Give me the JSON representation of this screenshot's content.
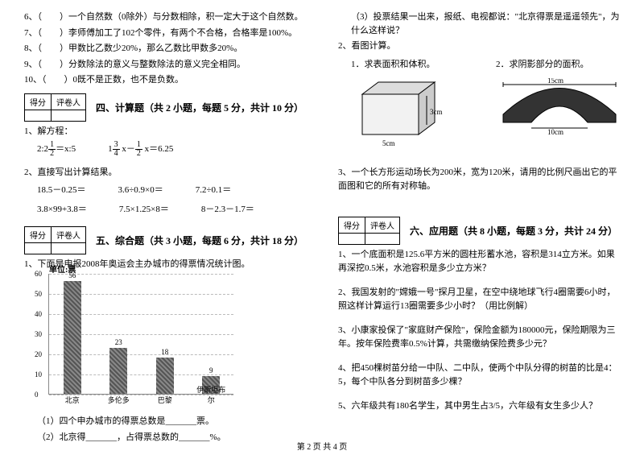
{
  "left": {
    "judgeItems": [
      "6、（　　）一个自然数（0除外）与分数相除，积一定大于这个自然数。",
      "7、（　　）李师傅加工了102个零件，有两个不合格，合格率是100%。",
      "8、（　　）甲数比乙数少20%，那么乙数比甲数多20%。",
      "9、（　　）分数除法的意义与整数除法的意义完全相同。",
      "10、（　　）0既不是正数，也不是负数。"
    ],
    "sec4": {
      "title": "四、计算题（共 2 小题，每题 5 分，共计 10 分）",
      "q1": "1、解方程：",
      "eq1a_pre": "2:2",
      "eq1a_frac_n": "1",
      "eq1a_frac_d": "2",
      "eq1a_post": "＝x:5",
      "eq1b_pre": "1",
      "eq1b_f1n": "3",
      "eq1b_f1d": "4",
      "eq1b_mid": " x－",
      "eq1b_f2n": "1",
      "eq1b_f2d": "2",
      "eq1b_post": " x＝6.25",
      "q2": "2、直接写出计算结果。",
      "row1": [
        "18.5－0.25＝",
        "3.6÷0.9×0＝",
        "7.2÷0.1＝"
      ],
      "row2": [
        "3.8×99+3.8＝",
        "7.5×1.25×8＝",
        "8－2.3－1.7＝"
      ]
    },
    "sec5": {
      "title": "五、综合题（共 3 小题，每题 6 分，共计 18 分）",
      "q1": "1、下面是申报2008年奥运会主办城市的得票情况统计图。",
      "chart": {
        "unit": "单位:票",
        "ymax": 60,
        "ystep": 10,
        "cats": [
          "北京",
          "多伦多",
          "巴黎",
          "伊斯坦布尔"
        ],
        "vals": [
          56,
          23,
          18,
          9
        ],
        "bar_color": "#666"
      },
      "sub1": "（1）四个申办城市的得票总数是_______票。",
      "sub2": "（2）北京得_______，占得票总数的_______%。"
    },
    "scoreHeader": [
      "得分",
      "评卷人"
    ]
  },
  "right": {
    "topLines": [
      "（3）投票结果一出来，报纸、电视都说：\"北京得票是遥遥领先\"，为什么这样说？",
      "2、看图计算。",
      "1．求表面积和体积。",
      "2．求阴影部分的面积。"
    ],
    "cube": {
      "side_cm": "5cm",
      "height_cm": "3cm"
    },
    "arch": {
      "top_cm": "15cm",
      "bottom_cm": "10cm"
    },
    "q3": "3、一个长方形运动场长为200米，宽为120米，请用的比例尺画出它的平面图和它的所有对称轴。",
    "sec6": {
      "title": "六、应用题（共 8 小题，每题 3 分，共计 24 分）",
      "items": [
        "1、一个底面积是125.6平方米的圆柱形蓄水池，容积是314立方米。如果再深挖0.5米，水池容积是多少立方米？",
        "2、我国发射的\"嫦娥一号\"探月卫星，在空中绕地球飞行4圈需要6小时，照这样计算运行13圈需要多少小时？（用比例解）",
        "3、小康家投保了\"家庭财产保险\"，保险金额为180000元，保险期限为三年。按年保险费率0.5%计算，共需缴纳保险费多少元？",
        "4、把450棵树苗分给一中队、二中队，使两个中队分得的树苗的比是4：5，每个中队各分到树苗多少棵？",
        "5、六年级共有180名学生，其中男生占3/5，六年级有女生多少人？"
      ]
    },
    "scoreHeader": [
      "得分",
      "评卷人"
    ]
  },
  "footer": "第 2 页 共 4 页"
}
